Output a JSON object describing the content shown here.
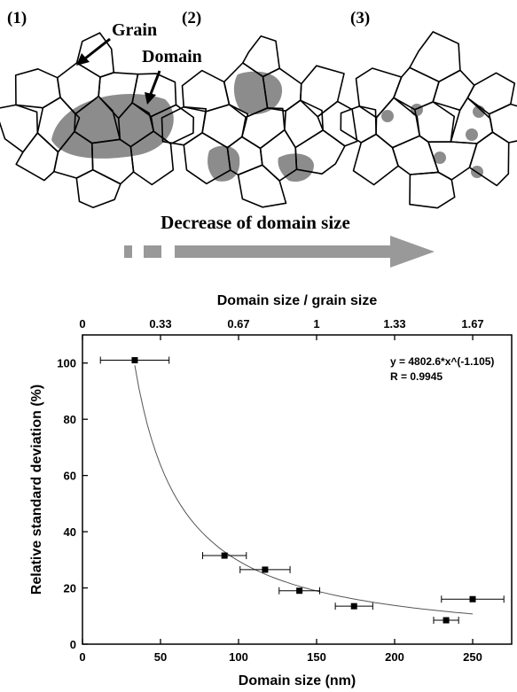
{
  "diagram": {
    "panels": [
      "(1)",
      "(2)",
      "(3)"
    ],
    "grain_label": "Grain",
    "domain_label": "Domain",
    "caption": "Decrease of domain size"
  },
  "chart_data": {
    "type": "scatter",
    "x": [
      33.5,
      91,
      117,
      139,
      174,
      233,
      250
    ],
    "values": [
      101,
      31.5,
      26.5,
      19,
      13.5,
      8.5,
      16
    ],
    "x_errors": [
      22,
      14,
      16,
      13,
      12,
      8,
      20
    ],
    "color": "#000000",
    "xlabel": "Domain size (nm)",
    "ylabel": "Relative standard deviation (%)",
    "xlim": [
      0,
      275
    ],
    "xticks": [
      0,
      50,
      100,
      150,
      200,
      250
    ],
    "ylim": [
      0,
      110
    ],
    "yticks": [
      0,
      20,
      40,
      60,
      80,
      100
    ],
    "x2label": "Domain size / grain size",
    "x2lim": [
      0,
      1.8333
    ],
    "x2ticks": [
      0,
      {
        "value": 0.3333,
        "label": "0.33"
      },
      {
        "value": 0.6667,
        "label": "0.67"
      },
      1,
      {
        "value": 1.3333,
        "label": "1.33"
      },
      {
        "value": 1.6667,
        "label": "1.67"
      }
    ],
    "fit": {
      "equation": "y = 4802.6*x^(-1.105)",
      "a": 4802.6,
      "b": -1.105,
      "r_label": "R = 0.9945"
    }
  }
}
